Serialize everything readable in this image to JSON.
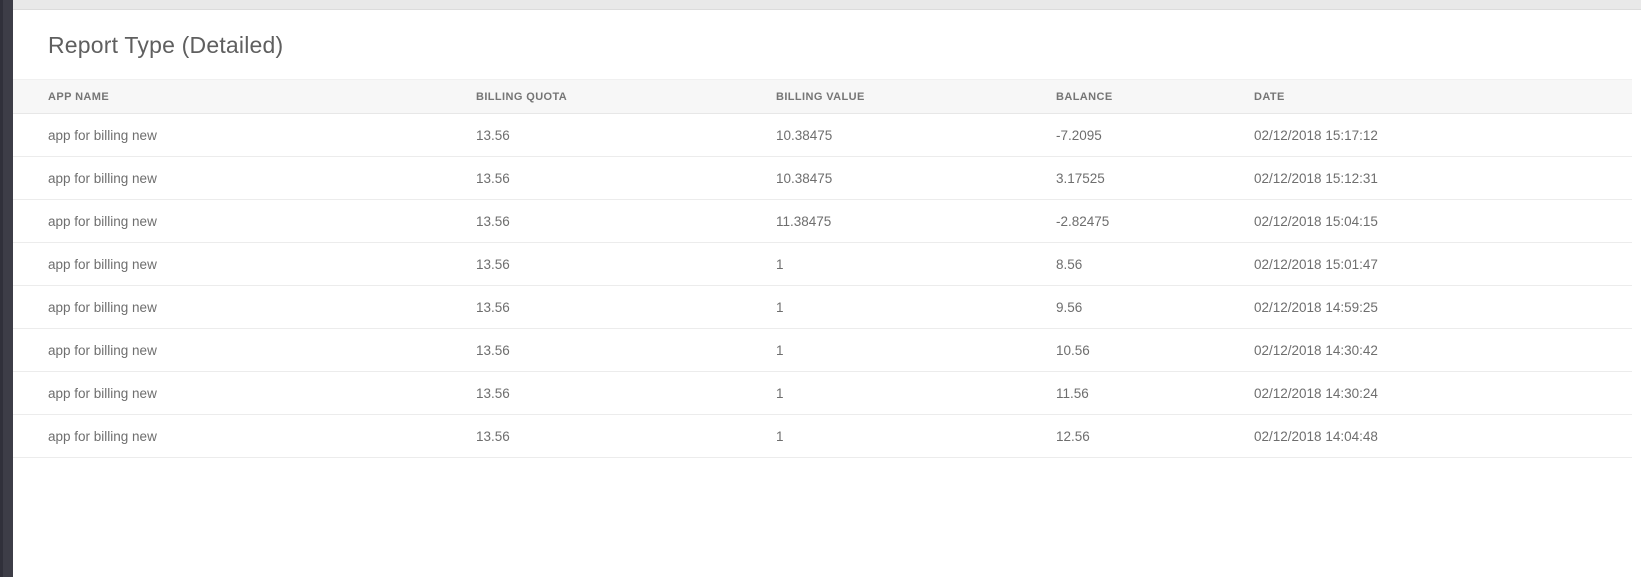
{
  "page": {
    "title": "Report Type (Detailed)"
  },
  "table": {
    "headers": [
      {
        "id": "app-name",
        "label": "APP NAME"
      },
      {
        "id": "billing-quota",
        "label": "BILLING QUOTA"
      },
      {
        "id": "billing-value",
        "label": "BILLING VALUE"
      },
      {
        "id": "balance",
        "label": "BALANCE"
      },
      {
        "id": "date",
        "label": "DATE"
      }
    ],
    "rows": [
      [
        "app for billing new",
        "13.56",
        "10.38475",
        "-7.2095",
        "02/12/2018 15:17:12"
      ],
      [
        "app for billing new",
        "13.56",
        "10.38475",
        "3.17525",
        "02/12/2018 15:12:31"
      ],
      [
        "app for billing new",
        "13.56",
        "11.38475",
        "-2.82475",
        "02/12/2018 15:04:15"
      ],
      [
        "app for billing new",
        "13.56",
        "1",
        "8.56",
        "02/12/2018 15:01:47"
      ],
      [
        "app for billing new",
        "13.56",
        "1",
        "9.56",
        "02/12/2018 14:59:25"
      ],
      [
        "app for billing new",
        "13.56",
        "1",
        "10.56",
        "02/12/2018 14:30:42"
      ],
      [
        "app for billing new",
        "13.56",
        "1",
        "11.56",
        "02/12/2018 14:30:24"
      ],
      [
        "app for billing new",
        "13.56",
        "1",
        "12.56",
        "02/12/2018 14:04:48"
      ]
    ]
  },
  "colors": {
    "left_rail": "#3d3d47",
    "left_rail_edge": "#30303a",
    "top_bar": "#e9e9e9",
    "header_bg": "#f7f7f7",
    "header_text": "#757575",
    "cell_text": "#6e6e6e",
    "title_text": "#5f5f5f",
    "row_divider": "#ececec"
  }
}
